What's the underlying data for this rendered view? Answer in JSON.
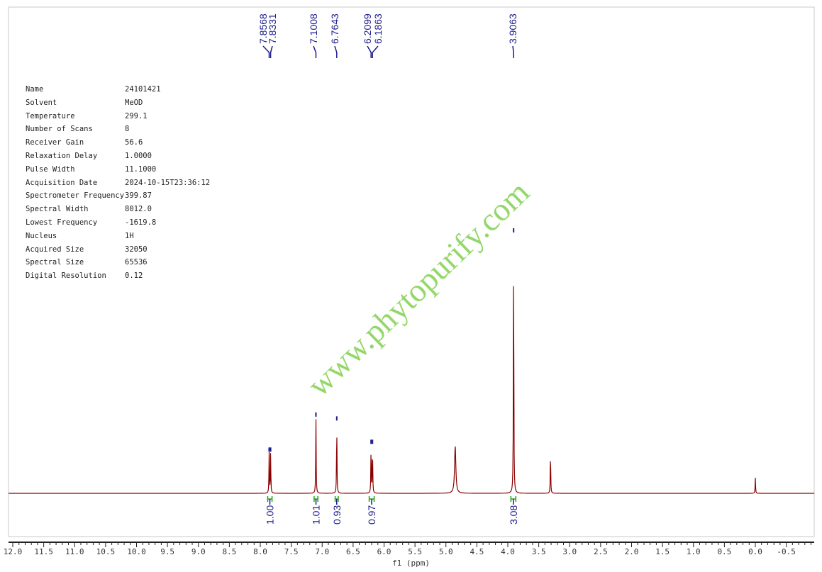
{
  "parameters": [
    {
      "key": "Name",
      "value": "24101421"
    },
    {
      "key": "Solvent",
      "value": "MeOD"
    },
    {
      "key": "Temperature",
      "value": "299.1"
    },
    {
      "key": "Number of Scans",
      "value": "8"
    },
    {
      "key": "Receiver Gain",
      "value": "56.6"
    },
    {
      "key": "Relaxation Delay",
      "value": "1.0000"
    },
    {
      "key": "Pulse Width",
      "value": "11.1000"
    },
    {
      "key": "Acquisition Date",
      "value": "2024-10-15T23:36:12"
    },
    {
      "key": "Spectrometer Frequency",
      "value": "399.87"
    },
    {
      "key": "Spectral Width",
      "value": "8012.0"
    },
    {
      "key": "Lowest Frequency",
      "value": "-1619.8"
    },
    {
      "key": "Nucleus",
      "value": "1H"
    },
    {
      "key": "Acquired Size",
      "value": "32050"
    },
    {
      "key": "Spectral Size",
      "value": "65536"
    },
    {
      "key": "Digital Resolution",
      "value": "0.12"
    }
  ],
  "watermark": "www.phytopurify.com",
  "chart_data": {
    "type": "line",
    "xlabel": "f1 (ppm)",
    "xlim": [
      12.0,
      -0.95
    ],
    "x_reversed": true,
    "xticks": [
      "12.0",
      "11.5",
      "11.0",
      "10.5",
      "10.0",
      "9.5",
      "9.0",
      "8.5",
      "8.0",
      "7.5",
      "7.0",
      "6.5",
      "6.0",
      "5.5",
      "5.0",
      "4.5",
      "4.0",
      "3.5",
      "3.0",
      "2.5",
      "2.0",
      "1.5",
      "1.0",
      "0.5",
      "0.0",
      "-0.5"
    ],
    "xtick_values": [
      12.0,
      11.5,
      11.0,
      10.5,
      10.0,
      9.5,
      9.0,
      8.5,
      8.0,
      7.5,
      7.0,
      6.5,
      6.0,
      5.5,
      5.0,
      4.5,
      4.0,
      3.5,
      3.0,
      2.5,
      2.0,
      1.5,
      1.0,
      0.5,
      0.0,
      -0.5
    ],
    "peaks": [
      {
        "ppm": 7.8568,
        "intensity": 15.5
      },
      {
        "ppm": 7.8331,
        "intensity": 15.5
      },
      {
        "ppm": 7.1008,
        "intensity": 29
      },
      {
        "ppm": 6.7643,
        "intensity": 27.5
      },
      {
        "ppm": 6.2099,
        "intensity": 18.5
      },
      {
        "ppm": 6.1863,
        "intensity": 18.5
      },
      {
        "ppm": 4.85,
        "intensity": 18.5
      },
      {
        "ppm": 3.9063,
        "intensity": 100
      },
      {
        "ppm": 3.31,
        "intensity": 16.5
      },
      {
        "ppm": 0.0,
        "intensity": 6
      }
    ],
    "peak_labels": [
      "7.8568",
      "7.8331",
      "7.1008",
      "6.7643",
      "6.2099",
      "6.1863",
      "3.9063"
    ],
    "peak_label_ppm": [
      7.8568,
      7.8331,
      7.1008,
      6.7643,
      6.2099,
      6.1863,
      3.9063
    ],
    "integrals": [
      {
        "ppm_from": 7.88,
        "ppm_to": 7.81,
        "value": "1.00"
      },
      {
        "ppm_from": 7.13,
        "ppm_to": 7.07,
        "value": "1.01"
      },
      {
        "ppm_from": 6.79,
        "ppm_to": 6.74,
        "value": "0.93"
      },
      {
        "ppm_from": 6.24,
        "ppm_to": 6.16,
        "value": "0.97"
      },
      {
        "ppm_from": 3.95,
        "ppm_to": 3.87,
        "value": "3.08"
      }
    ],
    "colors": {
      "spectrum": "#8b0000",
      "peak_label": "#1a1a8c",
      "integral_bracket": "#22a022",
      "watermark": "#8ad35a"
    }
  }
}
